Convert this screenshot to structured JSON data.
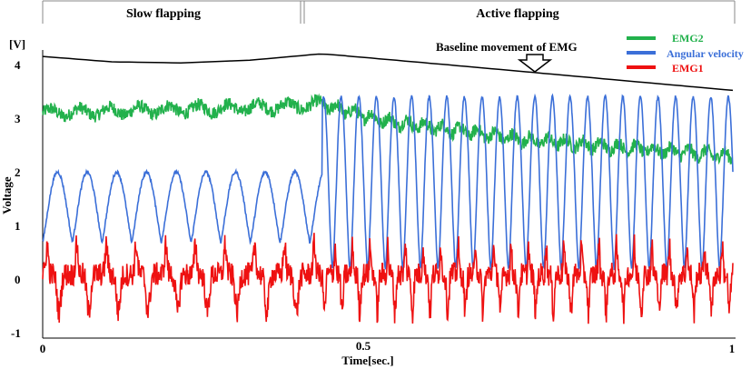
{
  "chart_data": {
    "type": "line",
    "xlabel": "Time[sec.]",
    "ylabel": "Voltage",
    "unit_label": "[V]",
    "xlim": [
      0,
      1
    ],
    "ylim": [
      -1,
      4.2
    ],
    "x_ticks": [
      "0",
      "0.5",
      "1"
    ],
    "y_ticks": [
      "4",
      "3",
      "2",
      "1",
      "0",
      "-1"
    ],
    "grid": false,
    "legend_position": "top-right",
    "phases": [
      {
        "label": "Slow flapping",
        "x_start": 0.0,
        "x_end": 0.405
      },
      {
        "label": "Active flapping",
        "x_start": 0.405,
        "x_end": 1.0
      }
    ],
    "annotation": "Baseline movement of EMG",
    "baseline_curve": {
      "x": [
        0.0,
        0.1,
        0.2,
        0.3,
        0.405,
        0.6,
        0.8,
        1.0
      ],
      "y": [
        4.15,
        4.05,
        4.03,
        4.08,
        4.2,
        3.98,
        3.75,
        3.52
      ]
    },
    "series": [
      {
        "name": "EMG2",
        "color": "#22b14c",
        "baseline_x": [
          0.0,
          0.3,
          0.405,
          0.5,
          0.7,
          1.0
        ],
        "baseline_y": [
          3.1,
          3.2,
          3.25,
          2.95,
          2.6,
          2.3
        ],
        "noise": 0.12
      },
      {
        "name": "Angular velocity",
        "color": "#3b6fd8",
        "slow_cycle_sec": 0.043,
        "active_cycle_sec": 0.0255,
        "slow_min": 0.7,
        "slow_max": 2.0,
        "active_min": 0.2,
        "active_max": 3.4
      },
      {
        "name": "EMG1",
        "color": "#ee1111",
        "baseline": 0.1,
        "min": -0.9,
        "max": 1.2
      }
    ]
  }
}
